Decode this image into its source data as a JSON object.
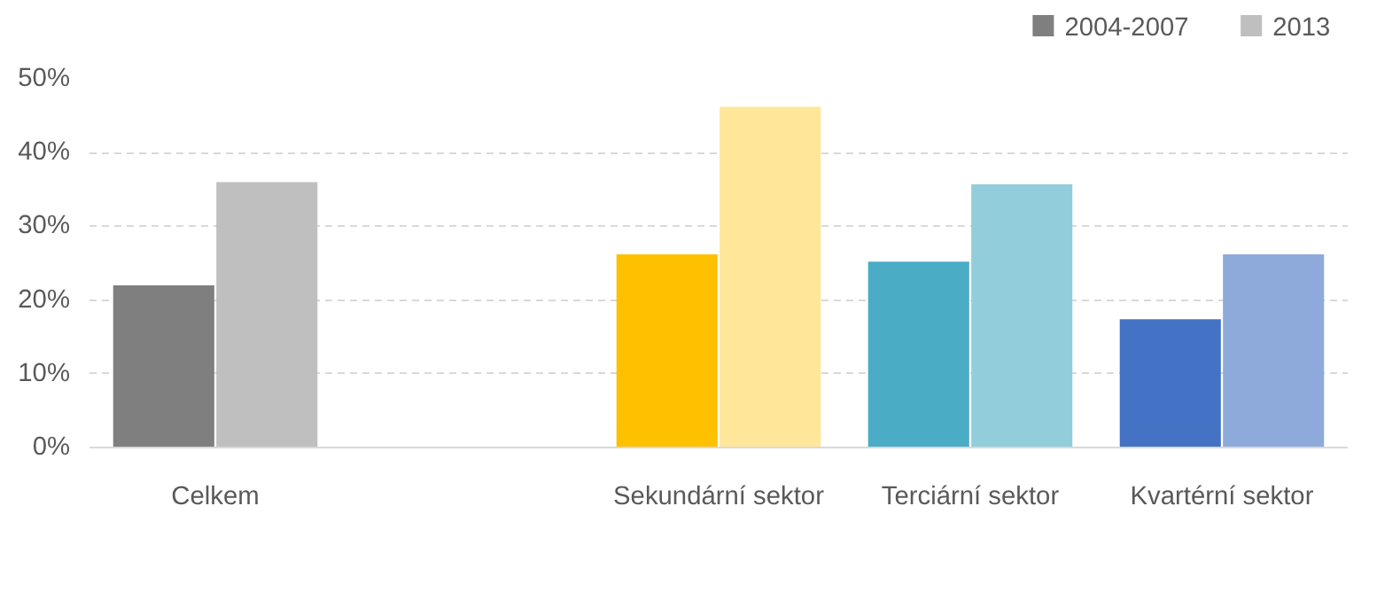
{
  "chart_data": {
    "type": "bar",
    "categories": [
      "Celkem",
      null,
      "Sekundární sektor",
      "Terciární sektor",
      "Kvartérní sektor"
    ],
    "series": [
      {
        "name": "2004-2007",
        "color": "#7f7f7f",
        "colors": [
          "#7f7f7f",
          null,
          "#ffc000",
          "#4bacc6",
          "#4472c4"
        ],
        "values": [
          22,
          null,
          26.2,
          25.2,
          17.4
        ]
      },
      {
        "name": "2013",
        "color": "#bfbfbf",
        "colors": [
          "#bfbfbf",
          null,
          "#ffe699",
          "#92cddc",
          "#8eaadb"
        ],
        "values": [
          36,
          null,
          46.2,
          35.7,
          26.2
        ]
      }
    ],
    "ylim": [
      0,
      50
    ],
    "yticks": [
      {
        "value": 0,
        "label": "0%"
      },
      {
        "value": 10,
        "label": "10%"
      },
      {
        "value": 20,
        "label": "20%"
      },
      {
        "value": 30,
        "label": "30%"
      },
      {
        "value": 40,
        "label": "40%"
      },
      {
        "value": 50,
        "label": "50%"
      }
    ],
    "grid": "y",
    "legend": "top right"
  }
}
